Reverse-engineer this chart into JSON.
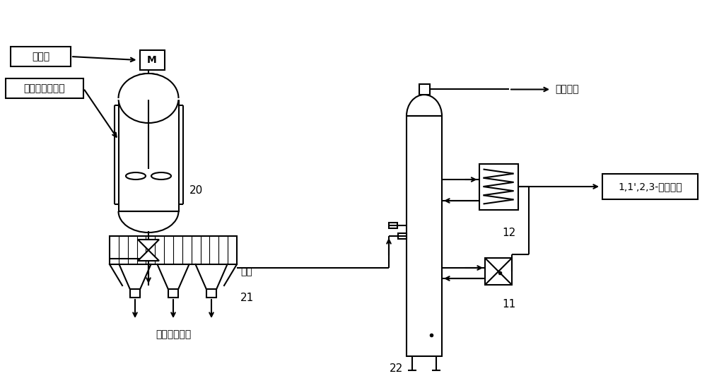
{
  "bg_color": "#ffffff",
  "line_color": "#000000",
  "line_width": 1.5,
  "labels": {
    "catalyst": "催化剂",
    "mixture": "四氯丙烯混合物",
    "reactor_num": "20",
    "filter_num": "21",
    "tower_num": "22",
    "condenser_num": "12",
    "pump_num": "11",
    "tower_top": "塔顶产品",
    "product": "1,1',2,3-四氯丙烯",
    "filter_cake": "滤饼（套用）",
    "filtrate": "滤液",
    "motor": "M"
  },
  "font_size": 11,
  "small_font_size": 10
}
